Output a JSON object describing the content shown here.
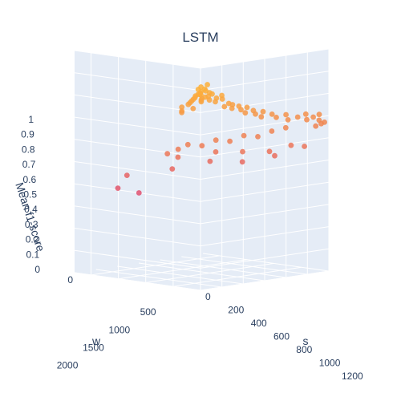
{
  "chart_data": {
    "type": "scatter3d",
    "title": "LSTM",
    "axes": {
      "x": {
        "label": "s",
        "range": [
          0,
          1200
        ],
        "ticks": [
          0,
          200,
          400,
          600,
          800,
          1000,
          1200
        ]
      },
      "y": {
        "label": "w",
        "range": [
          0,
          2300
        ],
        "ticks": [
          0,
          500,
          1000,
          1500,
          2000
        ]
      },
      "z": {
        "label": "Mean f1-score",
        "range": [
          0,
          1
        ],
        "ticks": [
          0,
          0.1,
          0.2,
          0.3,
          0.4,
          0.5,
          0.6,
          0.7,
          0.8,
          0.9,
          1
        ]
      }
    },
    "grid": true,
    "marker_colors": {
      "high": "#fdb03a",
      "low": "#e0506e"
    },
    "points": [
      {
        "s": 10,
        "w": 60,
        "f1": 0.88
      },
      {
        "s": 20,
        "w": 80,
        "f1": 0.9
      },
      {
        "s": 30,
        "w": 50,
        "f1": 0.89
      },
      {
        "s": 15,
        "w": 120,
        "f1": 0.87
      },
      {
        "s": 40,
        "w": 70,
        "f1": 0.91
      },
      {
        "s": 25,
        "w": 150,
        "f1": 0.86
      },
      {
        "s": 50,
        "w": 100,
        "f1": 0.88
      },
      {
        "s": 60,
        "w": 40,
        "f1": 0.9
      },
      {
        "s": 35,
        "w": 200,
        "f1": 0.85
      },
      {
        "s": 70,
        "w": 130,
        "f1": 0.87
      },
      {
        "s": 80,
        "w": 60,
        "f1": 0.89
      },
      {
        "s": 45,
        "w": 250,
        "f1": 0.84
      },
      {
        "s": 90,
        "w": 90,
        "f1": 0.86
      },
      {
        "s": 100,
        "w": 170,
        "f1": 0.85
      },
      {
        "s": 55,
        "w": 300,
        "f1": 0.83
      },
      {
        "s": 110,
        "w": 50,
        "f1": 0.88
      },
      {
        "s": 120,
        "w": 220,
        "f1": 0.84
      },
      {
        "s": 65,
        "w": 350,
        "f1": 0.82
      },
      {
        "s": 130,
        "w": 110,
        "f1": 0.86
      },
      {
        "s": 140,
        "w": 260,
        "f1": 0.83
      },
      {
        "s": 75,
        "w": 20,
        "f1": 0.92
      },
      {
        "s": 85,
        "w": 180,
        "f1": 0.87
      },
      {
        "s": 150,
        "w": 80,
        "f1": 0.87
      },
      {
        "s": 95,
        "w": 320,
        "f1": 0.8
      },
      {
        "s": 160,
        "w": 150,
        "f1": 0.84
      },
      {
        "s": 20,
        "w": 380,
        "f1": 0.81
      },
      {
        "s": 40,
        "w": 420,
        "f1": 0.79
      },
      {
        "s": 60,
        "w": 460,
        "f1": 0.78
      },
      {
        "s": 180,
        "w": 60,
        "f1": 0.85
      },
      {
        "s": 200,
        "w": 120,
        "f1": 0.83
      },
      {
        "s": 220,
        "w": 40,
        "f1": 0.86
      },
      {
        "s": 250,
        "w": 90,
        "f1": 0.84
      },
      {
        "s": 280,
        "w": 30,
        "f1": 0.82
      },
      {
        "s": 300,
        "w": 150,
        "f1": 0.8
      },
      {
        "s": 330,
        "w": 60,
        "f1": 0.81
      },
      {
        "s": 350,
        "w": 110,
        "f1": 0.79
      },
      {
        "s": 380,
        "w": 40,
        "f1": 0.8
      },
      {
        "s": 420,
        "w": 80,
        "f1": 0.78
      },
      {
        "s": 450,
        "w": 30,
        "f1": 0.79
      },
      {
        "s": 480,
        "w": 120,
        "f1": 0.76
      },
      {
        "s": 520,
        "w": 50,
        "f1": 0.77
      },
      {
        "s": 560,
        "w": 90,
        "f1": 0.75
      },
      {
        "s": 600,
        "w": 30,
        "f1": 0.76
      },
      {
        "s": 640,
        "w": 140,
        "f1": 0.73
      },
      {
        "s": 700,
        "w": 60,
        "f1": 0.74
      },
      {
        "s": 760,
        "w": 100,
        "f1": 0.72
      },
      {
        "s": 820,
        "w": 40,
        "f1": 0.73
      },
      {
        "s": 880,
        "w": 120,
        "f1": 0.7
      },
      {
        "s": 940,
        "w": 60,
        "f1": 0.71
      },
      {
        "s": 1000,
        "w": 30,
        "f1": 0.72
      },
      {
        "s": 1040,
        "w": 90,
        "f1": 0.69
      },
      {
        "s": 1080,
        "w": 50,
        "f1": 0.7
      },
      {
        "s": 1120,
        "w": 20,
        "f1": 0.71
      },
      {
        "s": 1150,
        "w": 80,
        "f1": 0.68
      },
      {
        "s": 1180,
        "w": 40,
        "f1": 0.67
      },
      {
        "s": 1190,
        "w": 120,
        "f1": 0.66
      },
      {
        "s": 1160,
        "w": 160,
        "f1": 0.65
      },
      {
        "s": 900,
        "w": 200,
        "f1": 0.66
      },
      {
        "s": 800,
        "w": 260,
        "f1": 0.65
      },
      {
        "s": 700,
        "w": 320,
        "f1": 0.63
      },
      {
        "s": 600,
        "w": 380,
        "f1": 0.64
      },
      {
        "s": 500,
        "w": 440,
        "f1": 0.62
      },
      {
        "s": 400,
        "w": 500,
        "f1": 0.63
      },
      {
        "s": 300,
        "w": 560,
        "f1": 0.61
      },
      {
        "s": 200,
        "w": 620,
        "f1": 0.62
      },
      {
        "s": 150,
        "w": 700,
        "f1": 0.6
      },
      {
        "s": 100,
        "w": 800,
        "f1": 0.58
      },
      {
        "s": 250,
        "w": 900,
        "f1": 0.55
      },
      {
        "s": 450,
        "w": 600,
        "f1": 0.57
      },
      {
        "s": 650,
        "w": 500,
        "f1": 0.56
      },
      {
        "s": 850,
        "w": 400,
        "f1": 0.55
      },
      {
        "s": 1000,
        "w": 300,
        "f1": 0.57
      },
      {
        "s": 1100,
        "w": 250,
        "f1": 0.56
      },
      {
        "s": 950,
        "w": 500,
        "f1": 0.52
      },
      {
        "s": 750,
        "w": 700,
        "f1": 0.5
      },
      {
        "s": 550,
        "w": 900,
        "f1": 0.51
      },
      {
        "s": 350,
        "w": 1200,
        "f1": 0.48
      },
      {
        "s": 80,
        "w": 1500,
        "f1": 0.46
      },
      {
        "s": 200,
        "w": 1900,
        "f1": 0.38
      },
      {
        "s": 500,
        "w": 2100,
        "f1": 0.33
      }
    ]
  }
}
